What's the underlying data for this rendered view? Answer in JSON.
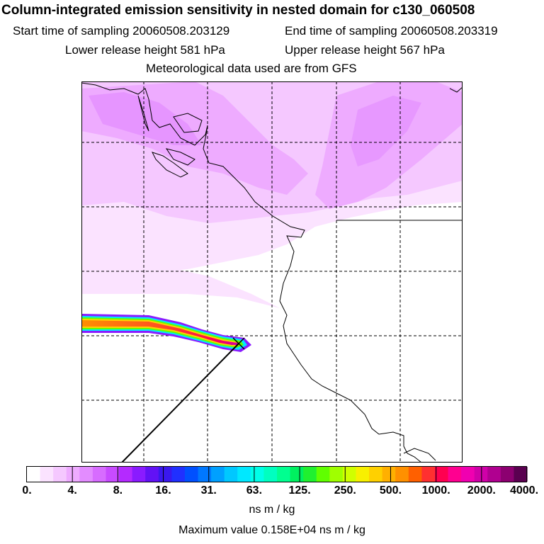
{
  "header": {
    "title": "Column-integrated emission sensitivity in nested domain for c130_060508",
    "start_label": "Start time of sampling 20060508.203129",
    "end_label": "End time of sampling 20060508.203319",
    "lower_label": "Lower release height  581 hPa",
    "upper_label": "Upper release height  567 hPa",
    "met_label": "Meteorological data used are from GFS"
  },
  "colorbar": {
    "labels": [
      "0.",
      "4.",
      "8.",
      "16.",
      "31.",
      "63.",
      "125.",
      "250.",
      "500.",
      "1000.",
      "2000.",
      "4000."
    ],
    "colors": [
      "#ffffff",
      "#fbe3ff",
      "#f5c8ff",
      "#eeabff",
      "#e38cff",
      "#d76cff",
      "#c84bff",
      "#b42aff",
      "#8a1bff",
      "#6212f5",
      "#3a18ee",
      "#2030ff",
      "#0050ff",
      "#0078ff",
      "#00a0ff",
      "#00c8ff",
      "#00e8ff",
      "#00ffe8",
      "#00ffc0",
      "#00ff90",
      "#00f060",
      "#20f030",
      "#60ff00",
      "#a0ff00",
      "#d0ff00",
      "#f8f000",
      "#ffd000",
      "#ffb000",
      "#ff9000",
      "#ff6000",
      "#ff3030",
      "#ff0050",
      "#ff0090",
      "#f000b0",
      "#d000a8",
      "#b00090",
      "#8c0070",
      "#5a0050"
    ],
    "units": "ns m / kg",
    "max_value": "Maximum value  0.158E+04 ns m / kg"
  },
  "map": {
    "release_point": {
      "lon_frac": 0.41,
      "lat_frac": 0.69
    },
    "flight_track": "straight segment from release point to lower-left"
  }
}
